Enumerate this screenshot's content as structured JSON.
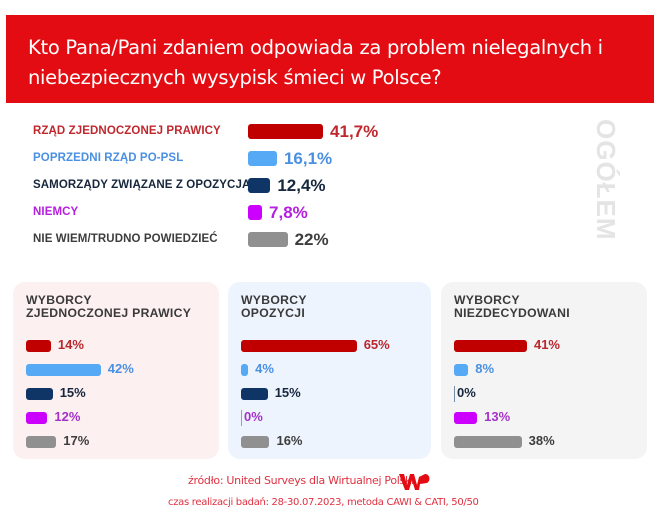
{
  "header": {
    "title": "Kto Pana/Pani zdaniem odpowiada za problem nielegalnych i niebezpiecznych wysypisk śmieci w Polsce?"
  },
  "side_label": "OGÓŁEM",
  "colors": {
    "header_bg": "#e20c12",
    "zjednoczona_prawica": "#c00000",
    "po_psl": "#55a9f5",
    "samorzady": "#0f3566",
    "niemcy": "#cc00ff",
    "nie_wiem": "#909090"
  },
  "chart_data": [
    {
      "type": "bar",
      "title": "OGÓŁEM",
      "orientation": "horizontal",
      "categories": [
        "RZĄD ZJEDNOCZONEJ PRAWICY",
        "POPRZEDNI RZĄD PO-PSL",
        "SAMORZĄDY ZWIĄZANE Z OPOZYCJĄ",
        "NIEMCY",
        "NIE WIEM/TRUDNO POWIEDZIEĆ"
      ],
      "values": [
        41.7,
        16.1,
        12.4,
        7.8,
        22
      ],
      "value_labels": [
        "41,7%",
        "16,1%",
        "12,4%",
        "7,8%",
        "22%"
      ],
      "label_colors": [
        "#c0272d",
        "#4a90e2",
        "#16263d",
        "#b520e0",
        "#3d3d3d"
      ],
      "value_colors": [
        "#c0272d",
        "#4a90e2",
        "#16263d",
        "#b520e0",
        "#3d3d3d"
      ],
      "bar_colors": [
        "#c00000",
        "#55a9f5",
        "#0f3566",
        "#cc00ff",
        "#909090"
      ],
      "unit": "%"
    },
    {
      "type": "bar",
      "title": [
        "WYBORCY",
        "ZJEDNOCZONEJ PRAWICY"
      ],
      "orientation": "horizontal",
      "panel_bg": "#fdf0f0",
      "values": [
        14,
        42,
        15,
        12,
        17
      ],
      "value_labels": [
        "14%",
        "42%",
        "15%",
        "12%",
        "17%"
      ],
      "value_colors": [
        "#b8262e",
        "#4a90e2",
        "#16263d",
        "#a432c8",
        "#3d3d3d"
      ],
      "bar_colors": [
        "#c00000",
        "#55a9f5",
        "#0f3566",
        "#cc00ff",
        "#909090"
      ],
      "unit": "%"
    },
    {
      "type": "bar",
      "title": [
        "WYBORCY",
        "OPOZYCJI"
      ],
      "orientation": "horizontal",
      "panel_bg": "#edf4fd",
      "values": [
        65,
        4,
        15,
        0,
        16
      ],
      "value_labels": [
        "65%",
        "4%",
        "15%",
        "0%",
        "16%"
      ],
      "value_colors": [
        "#b8262e",
        "#4a90e2",
        "#16263d",
        "#a432c8",
        "#3d3d3d"
      ],
      "bar_colors": [
        "#c00000",
        "#55a9f5",
        "#0f3566",
        "#cc00ff",
        "#909090"
      ],
      "unit": "%"
    },
    {
      "type": "bar",
      "title": [
        "WYBORCY",
        "NIEZDECYDOWANI"
      ],
      "orientation": "horizontal",
      "panel_bg": "#f4f4f4",
      "values": [
        41,
        8,
        0,
        13,
        38
      ],
      "value_labels": [
        "41%",
        "8%",
        "0%",
        "13%",
        "38%"
      ],
      "value_colors": [
        "#b8262e",
        "#4a90e2",
        "#16263d",
        "#a432c8",
        "#3d3d3d"
      ],
      "bar_colors": [
        "#c00000",
        "#55a9f5",
        "#0f3566",
        "#cc00ff",
        "#909090"
      ],
      "unit": "%"
    }
  ],
  "footer": {
    "source": "źródło: United Surveys dla Wirtualnej Polski",
    "method": "czas realizacji badań: 28-30.07.2023, metoda CAWI & CATI, 50/50",
    "logo": "WP"
  }
}
